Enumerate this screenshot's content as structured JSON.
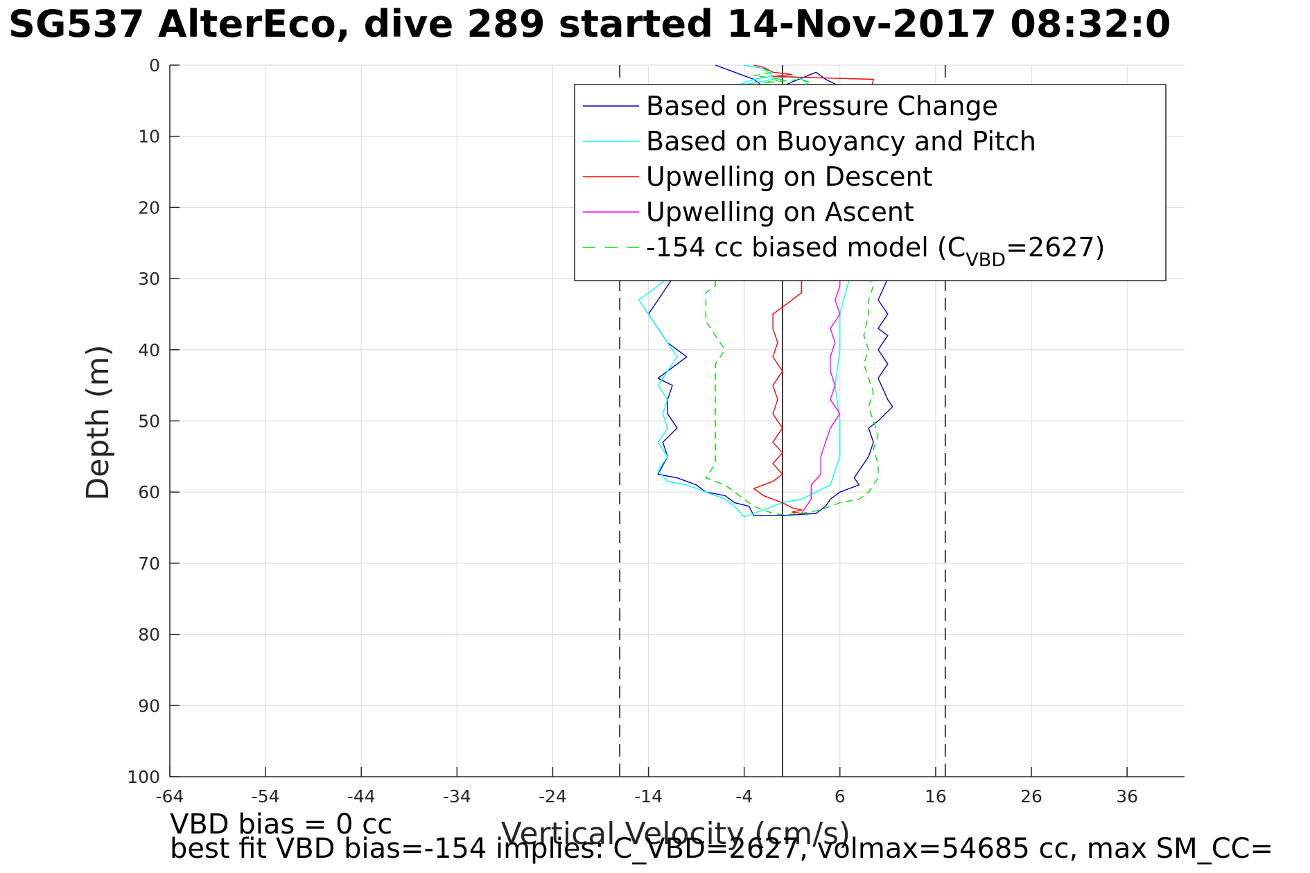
{
  "chart_data": {
    "type": "line",
    "title": "SG537 AlterEco, dive 289 started 14-Nov-2017 08:32:0",
    "xlabel": "Vertical Velocity (cm/s)",
    "ylabel": "Depth (m)",
    "xlim": [
      -64,
      42
    ],
    "ylim": [
      0,
      100
    ],
    "y_reversed": true,
    "grid": true,
    "xticks": [
      -64,
      -54,
      -44,
      -34,
      -24,
      -14,
      -4,
      6,
      16,
      26,
      36
    ],
    "yticks": [
      0,
      10,
      20,
      30,
      40,
      50,
      60,
      70,
      80,
      90,
      100
    ],
    "vertical_lines": [
      {
        "x": 0,
        "style": "solid",
        "color": "#000000"
      },
      {
        "x": -17,
        "style": "dashed",
        "color": "#000000"
      },
      {
        "x": 17,
        "style": "dashed",
        "color": "#000000"
      }
    ],
    "legend_position": "top-right",
    "series": [
      {
        "name": "Based on Pressure Change",
        "color": "#0000c8",
        "style": "solid",
        "points": [
          [
            -7,
            0
          ],
          [
            -5,
            1
          ],
          [
            -3,
            2
          ],
          [
            -2,
            3
          ],
          [
            -1,
            3.5
          ],
          [
            3.5,
            1
          ],
          [
            4.5,
            2
          ],
          [
            6,
            3
          ],
          [
            7,
            5
          ],
          [
            9,
            10
          ],
          [
            10,
            15
          ],
          [
            10.5,
            20
          ],
          [
            10,
            25
          ],
          [
            11,
            30
          ],
          [
            10,
            33
          ],
          [
            11,
            35
          ],
          [
            10,
            37
          ],
          [
            11,
            38
          ],
          [
            10,
            40
          ],
          [
            11,
            42
          ],
          [
            10,
            44
          ],
          [
            11,
            47
          ],
          [
            11.5,
            48
          ],
          [
            10,
            50
          ],
          [
            9,
            51
          ],
          [
            9.5,
            53
          ],
          [
            9,
            55
          ],
          [
            8,
            57
          ],
          [
            7.5,
            58
          ],
          [
            8,
            59
          ],
          [
            6,
            60
          ],
          [
            5,
            61
          ],
          [
            4.5,
            62
          ],
          [
            3.5,
            63
          ],
          [
            0,
            63.3
          ],
          [
            -3,
            63.3
          ],
          [
            -3.5,
            62
          ],
          [
            -5,
            61.5
          ],
          [
            -6,
            60.5
          ],
          [
            -8,
            60
          ],
          [
            -9,
            59
          ],
          [
            -11,
            58
          ],
          [
            -13,
            57.5
          ],
          [
            -12,
            55
          ],
          [
            -12.5,
            53
          ],
          [
            -11,
            51
          ],
          [
            -12,
            49
          ],
          [
            -12,
            47
          ],
          [
            -11.5,
            45
          ],
          [
            -13,
            44
          ],
          [
            -11,
            42
          ],
          [
            -10,
            41
          ],
          [
            -12,
            39
          ],
          [
            -13,
            37
          ],
          [
            -14,
            35
          ],
          [
            -13,
            33
          ],
          [
            -12,
            31
          ],
          [
            -11,
            29
          ]
        ]
      },
      {
        "name": "Based on Buoyancy and Pitch",
        "color": "#00ffff",
        "style": "solid",
        "points": [
          [
            -4,
            0
          ],
          [
            -2,
            0.5
          ],
          [
            -1,
            1.5
          ],
          [
            -3,
            2
          ],
          [
            -4,
            2.5
          ],
          [
            -5,
            3
          ],
          [
            1,
            1.5
          ],
          [
            2,
            2
          ],
          [
            3,
            3
          ],
          [
            6,
            10
          ],
          [
            7,
            20
          ],
          [
            7,
            30
          ],
          [
            6,
            35
          ],
          [
            6,
            40
          ],
          [
            5.5,
            45
          ],
          [
            6,
            50
          ],
          [
            6,
            55
          ],
          [
            5.5,
            57
          ],
          [
            5,
            59
          ],
          [
            3.5,
            60
          ],
          [
            2,
            61
          ],
          [
            0,
            61.5
          ],
          [
            -1,
            62
          ],
          [
            -2,
            62.5
          ],
          [
            -3,
            63
          ],
          [
            -4,
            63.5
          ],
          [
            -5,
            62
          ],
          [
            -6,
            61
          ],
          [
            -8,
            60
          ],
          [
            -10,
            59
          ],
          [
            -12,
            58.5
          ],
          [
            -13,
            57
          ],
          [
            -12,
            55
          ],
          [
            -13,
            53
          ],
          [
            -12,
            51
          ],
          [
            -12.5,
            49
          ],
          [
            -12,
            47
          ],
          [
            -13,
            45
          ],
          [
            -12,
            43
          ],
          [
            -11,
            41
          ],
          [
            -12,
            39
          ],
          [
            -13,
            37
          ],
          [
            -14,
            35
          ],
          [
            -15,
            33
          ],
          [
            -13,
            31
          ],
          [
            -11,
            29
          ]
        ]
      },
      {
        "name": "Upwelling on Descent",
        "color": "#ff0000",
        "style": "solid",
        "points": [
          [
            -3,
            0
          ],
          [
            -2,
            0.3
          ],
          [
            -1,
            1
          ],
          [
            1,
            1.3
          ],
          [
            -1,
            1.6
          ],
          [
            9.5,
            2
          ],
          [
            9,
            5
          ],
          [
            8.5,
            10
          ],
          [
            8,
            15
          ],
          [
            7,
            20
          ],
          [
            6,
            25
          ],
          [
            4,
            28
          ],
          [
            2,
            30
          ],
          [
            2,
            32
          ],
          [
            1,
            33
          ],
          [
            0,
            34
          ],
          [
            -1,
            35
          ],
          [
            -1,
            37
          ],
          [
            -0.5,
            39
          ],
          [
            -1,
            41
          ],
          [
            0,
            43
          ],
          [
            -1,
            45
          ],
          [
            -0.5,
            47
          ],
          [
            -1,
            49
          ],
          [
            0,
            51
          ],
          [
            -1,
            53
          ],
          [
            0,
            54.5
          ],
          [
            -1,
            56
          ],
          [
            0,
            57.5
          ],
          [
            -1,
            58.5
          ],
          [
            -3,
            59.5
          ],
          [
            -2,
            60.5
          ],
          [
            0,
            61.5
          ],
          [
            1,
            62.2
          ],
          [
            2,
            62.5
          ],
          [
            1,
            62.8
          ],
          [
            2,
            63
          ]
        ]
      },
      {
        "name": "Upwelling on Ascent",
        "color": "#ff00ff",
        "style": "solid",
        "points": [
          [
            2,
            63
          ],
          [
            3,
            61
          ],
          [
            3,
            59
          ],
          [
            4,
            57.5
          ],
          [
            4,
            55
          ],
          [
            4.5,
            53
          ],
          [
            5,
            51
          ],
          [
            6,
            49
          ],
          [
            5,
            47
          ],
          [
            5.5,
            45
          ],
          [
            5,
            43
          ],
          [
            5,
            41
          ],
          [
            5.5,
            39
          ],
          [
            5,
            37
          ],
          [
            6,
            35
          ],
          [
            5.5,
            33
          ],
          [
            6,
            31
          ],
          [
            6,
            29
          ]
        ]
      },
      {
        "name": "-154 cc biased model (C_VBD=2627)",
        "legend_main": "-154 cc biased model (C",
        "legend_sub": "VBD",
        "legend_tail": "=2627)",
        "color": "#00e000",
        "style": "dashed",
        "points": [
          [
            -2,
            0.5
          ],
          [
            -1,
            1
          ],
          [
            -3,
            1.5
          ],
          [
            0,
            2
          ],
          [
            -2,
            2.5
          ],
          [
            2,
            2
          ],
          [
            3,
            2.5
          ],
          [
            9,
            25
          ],
          [
            9,
            30
          ],
          [
            9.5,
            31
          ],
          [
            9,
            33
          ],
          [
            9,
            35
          ],
          [
            8.5,
            38
          ],
          [
            9,
            40
          ],
          [
            8.5,
            42
          ],
          [
            9,
            44
          ],
          [
            9.5,
            46
          ],
          [
            9,
            48
          ],
          [
            9.5,
            50
          ],
          [
            10,
            52
          ],
          [
            9.5,
            54
          ],
          [
            10,
            56
          ],
          [
            10,
            58
          ],
          [
            9.5,
            59
          ],
          [
            9,
            60
          ],
          [
            8,
            61
          ],
          [
            6,
            61.5
          ],
          [
            5,
            62
          ],
          [
            4,
            62.5
          ],
          [
            2,
            63
          ],
          [
            0,
            63.2
          ],
          [
            -1,
            63
          ],
          [
            -2,
            62.5
          ],
          [
            -3,
            62
          ],
          [
            -4,
            61
          ],
          [
            -5,
            60
          ],
          [
            -6,
            59
          ],
          [
            -7,
            58.5
          ],
          [
            -8,
            58
          ],
          [
            -7,
            56
          ],
          [
            -7,
            54
          ],
          [
            -7,
            52
          ],
          [
            -7,
            50
          ],
          [
            -7,
            48
          ],
          [
            -7,
            46
          ],
          [
            -7,
            44
          ],
          [
            -7,
            42
          ],
          [
            -6,
            40
          ],
          [
            -7,
            38
          ],
          [
            -8,
            36
          ],
          [
            -8,
            34
          ],
          [
            -8,
            32
          ],
          [
            -7,
            31
          ],
          [
            -7,
            30
          ]
        ]
      }
    ]
  },
  "notes": {
    "line1": "VBD bias = 0 cc",
    "line2": "best fit VBD bias=-154 implies: C_VBD=2627, volmax=54685 cc, max SM_CC="
  }
}
